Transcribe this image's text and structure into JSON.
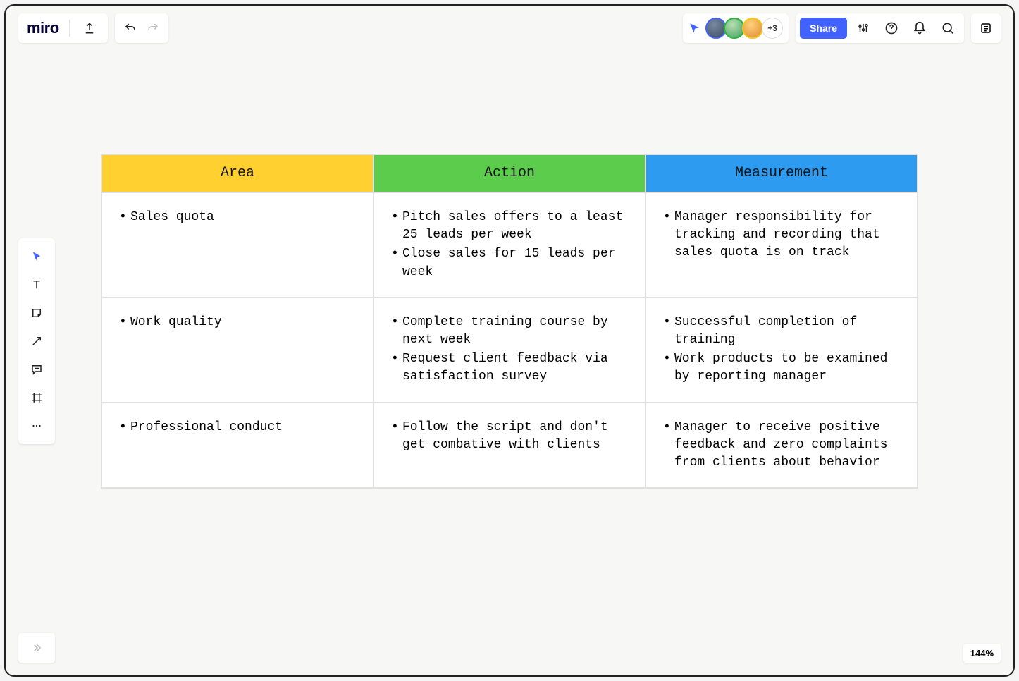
{
  "app": {
    "logo": "miro"
  },
  "toolbar": {
    "share_label": "Share",
    "avatar_more": "+3",
    "zoom": "144%"
  },
  "table": {
    "columns": [
      {
        "label": "Area",
        "bg": "#ffd02f"
      },
      {
        "label": "Action",
        "bg": "#5bcc4b"
      },
      {
        "label": "Measurement",
        "bg": "#2d9bf0"
      }
    ],
    "header_font": "Courier New, monospace",
    "header_fontsize": 20,
    "cell_font": "Courier New, monospace",
    "cell_fontsize": 18,
    "border_color": "#e0e0e0",
    "rows": [
      {
        "area": [
          "Sales quota"
        ],
        "action": [
          "Pitch sales offers to a least 25 leads per week",
          "Close sales for 15 leads per week"
        ],
        "measurement": [
          "Manager responsibility for tracking and recording that sales quota is on track"
        ]
      },
      {
        "area": [
          "Work quality"
        ],
        "action": [
          "Complete training course by next week",
          "Request client feedback via satisfaction survey"
        ],
        "measurement": [
          "Successful completion of training",
          "Work products to be examined by reporting manager"
        ]
      },
      {
        "area": [
          "Professional conduct"
        ],
        "action": [
          "Follow the script and don't get combative with clients"
        ],
        "measurement": [
          "Manager to receive positive feedback and zero complaints from clients about behavior"
        ]
      }
    ]
  }
}
